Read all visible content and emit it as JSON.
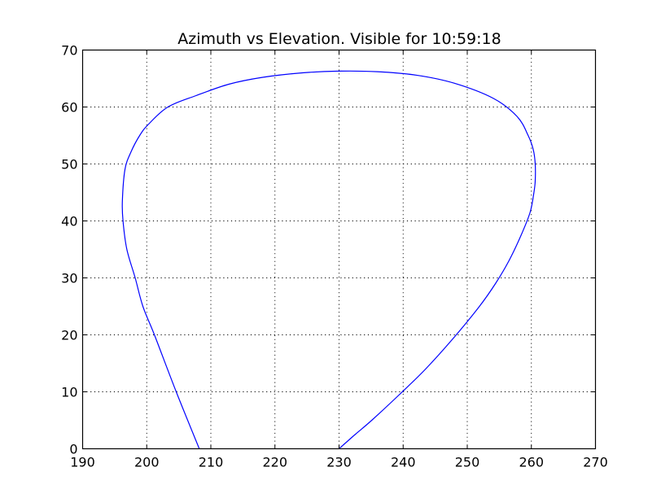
{
  "chart_data": {
    "type": "line",
    "title": "Azimuth vs Elevation. Visible for 10:59:18",
    "xlabel": "",
    "ylabel": "",
    "xlim": [
      190,
      270
    ],
    "ylim": [
      0,
      70
    ],
    "xticks": [
      190,
      200,
      210,
      220,
      230,
      240,
      250,
      260,
      270
    ],
    "yticks": [
      0,
      10,
      20,
      30,
      40,
      50,
      60,
      70
    ],
    "grid": true,
    "line_color": "#0000ff",
    "series": [
      {
        "x": [
          208.2,
          204.6,
          201.2,
          199.4,
          198.2,
          196.9,
          196.3,
          196.2,
          196.6,
          197.5,
          198.9,
          200.3,
          203.3,
          207.7,
          212.8,
          218.0,
          224.3,
          230.0,
          236.0,
          242.0,
          247.9,
          254.1,
          257.8,
          259.5,
          260.3,
          260.6,
          260.6,
          260.4,
          259.8,
          258.4,
          256.5,
          254.4,
          251.9,
          247.9,
          243.5,
          239.4,
          235.1,
          232.5,
          230.0
        ],
        "y": [
          0,
          10,
          20,
          25,
          30,
          35,
          40,
          43.5,
          49,
          52,
          55,
          57,
          60,
          62,
          64,
          65.2,
          66.0,
          66.3,
          66.2,
          65.6,
          64.2,
          61.5,
          58.3,
          55.0,
          52.5,
          50.0,
          47.0,
          45.0,
          41.5,
          37.5,
          33.0,
          29.0,
          25.0,
          19.5,
          14.0,
          9.5,
          5.0,
          2.5,
          0
        ]
      }
    ]
  }
}
